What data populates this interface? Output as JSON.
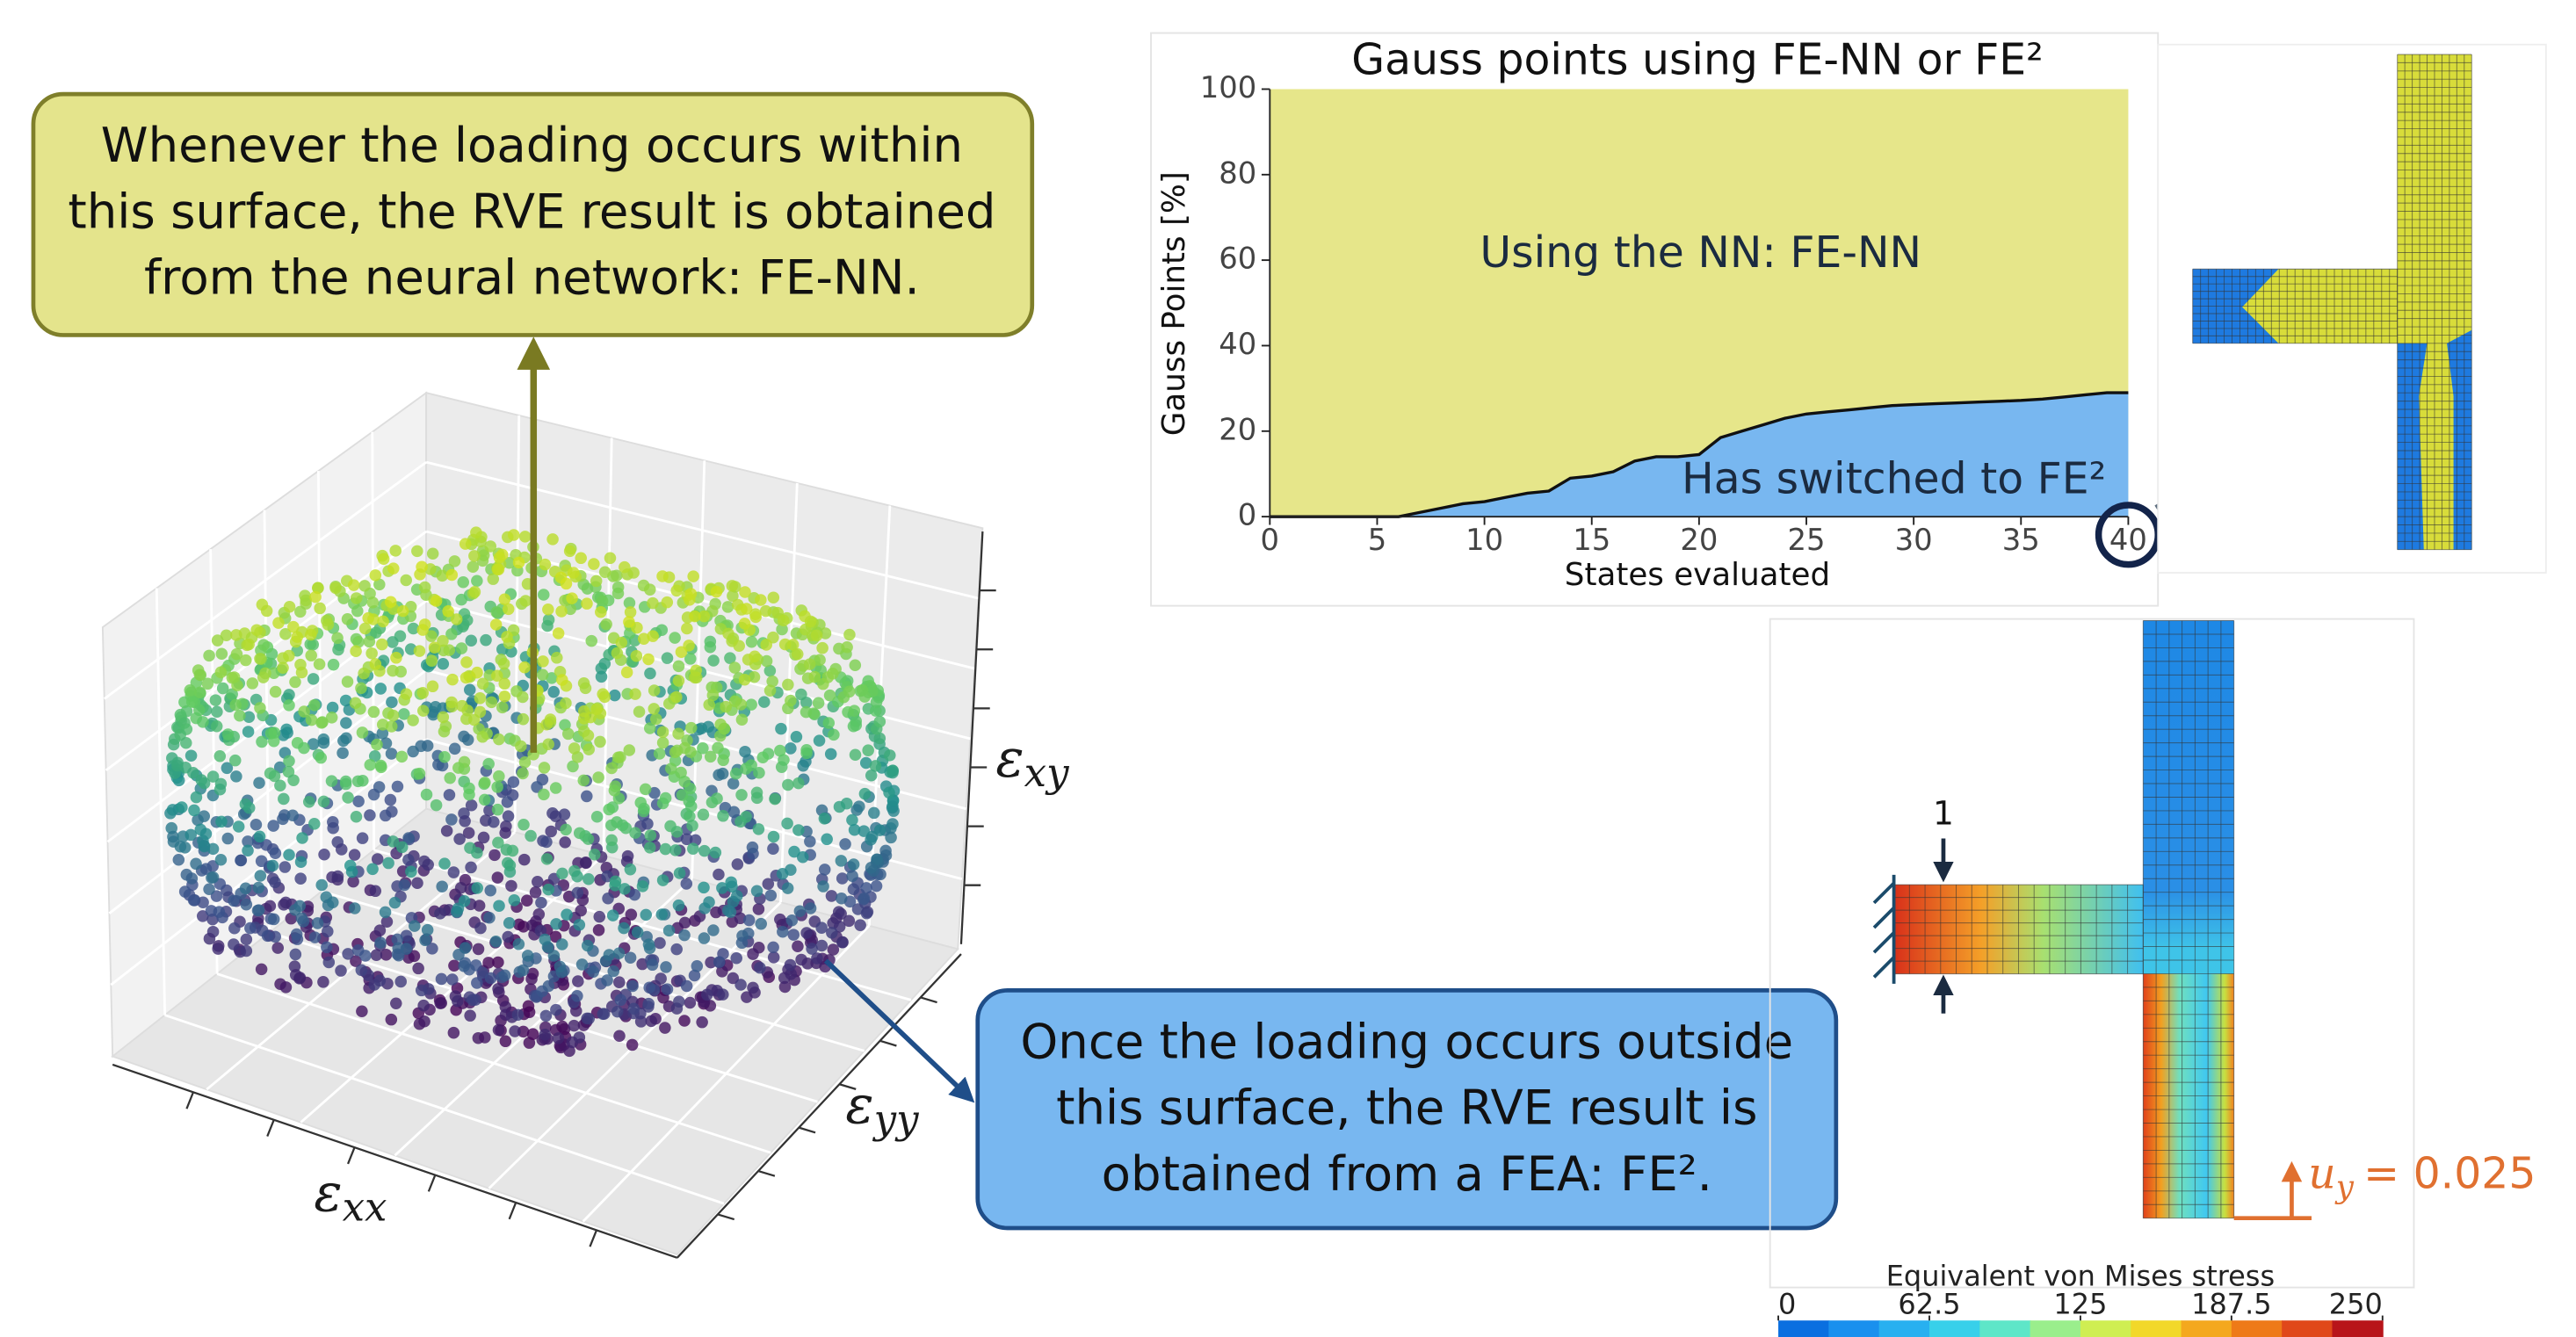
{
  "callouts": {
    "nn": {
      "lines": [
        "Whenever the loading occurs within",
        "this surface, the RVE result is obtained",
        "from the neural network: FE-NN."
      ]
    },
    "fe2": {
      "lines": [
        "Once the loading occurs outside",
        "this surface, the RVE result is",
        "obtained from a FEA: FE²."
      ]
    }
  },
  "axes3d": {
    "x_label": {
      "symbol": "ε",
      "subscript": "xx"
    },
    "y_label": {
      "symbol": "ε",
      "subscript": "yy"
    },
    "z_label": {
      "symbol": "ε",
      "subscript": "xy"
    }
  },
  "chart_data": {
    "type": "area",
    "title": "Gauss points using FE-NN or FE²",
    "x_label": "States evaluated",
    "y_label": "Gauss Points [%]",
    "x": [
      0,
      1,
      2,
      3,
      4,
      5,
      6,
      7,
      8,
      9,
      10,
      11,
      12,
      13,
      14,
      15,
      16,
      17,
      18,
      19,
      20,
      21,
      22,
      23,
      24,
      25,
      26,
      27,
      28,
      29,
      30,
      31,
      32,
      33,
      34,
      35,
      36,
      37,
      38,
      39,
      40
    ],
    "series": [
      {
        "name": "Has switched to FE²",
        "color": "#78b7f0",
        "values": [
          0,
          0,
          0,
          0,
          0,
          0,
          0,
          1,
          2,
          3,
          3.5,
          4.5,
          5.5,
          6,
          9,
          9.5,
          10.5,
          13,
          14,
          14,
          14.5,
          18.5,
          20,
          21.5,
          23,
          24,
          24.5,
          25,
          25.5,
          26,
          26.2,
          26.4,
          26.6,
          26.8,
          27,
          27.2,
          27.5,
          28,
          28.5,
          29,
          29
        ]
      }
    ],
    "fill_above": {
      "name": "Using the NN: FE-NN",
      "color": "#e6e68a"
    },
    "xlim": [
      0,
      40
    ],
    "ylim": [
      0,
      100
    ],
    "xticks": [
      0,
      5,
      10,
      15,
      20,
      25,
      30,
      35,
      40
    ],
    "yticks": [
      0,
      20,
      40,
      60,
      80,
      100
    ]
  },
  "stress_plot": {
    "load_label": "1",
    "displacement": {
      "symbol": "u",
      "subscript": "y",
      "text": "= 0.025"
    },
    "colorbar_title": "Equivalent von Mises stress",
    "colorbar_lim": [
      0,
      250
    ],
    "colorbar_ticks": [
      0,
      62.5,
      125,
      187.5,
      250
    ]
  }
}
